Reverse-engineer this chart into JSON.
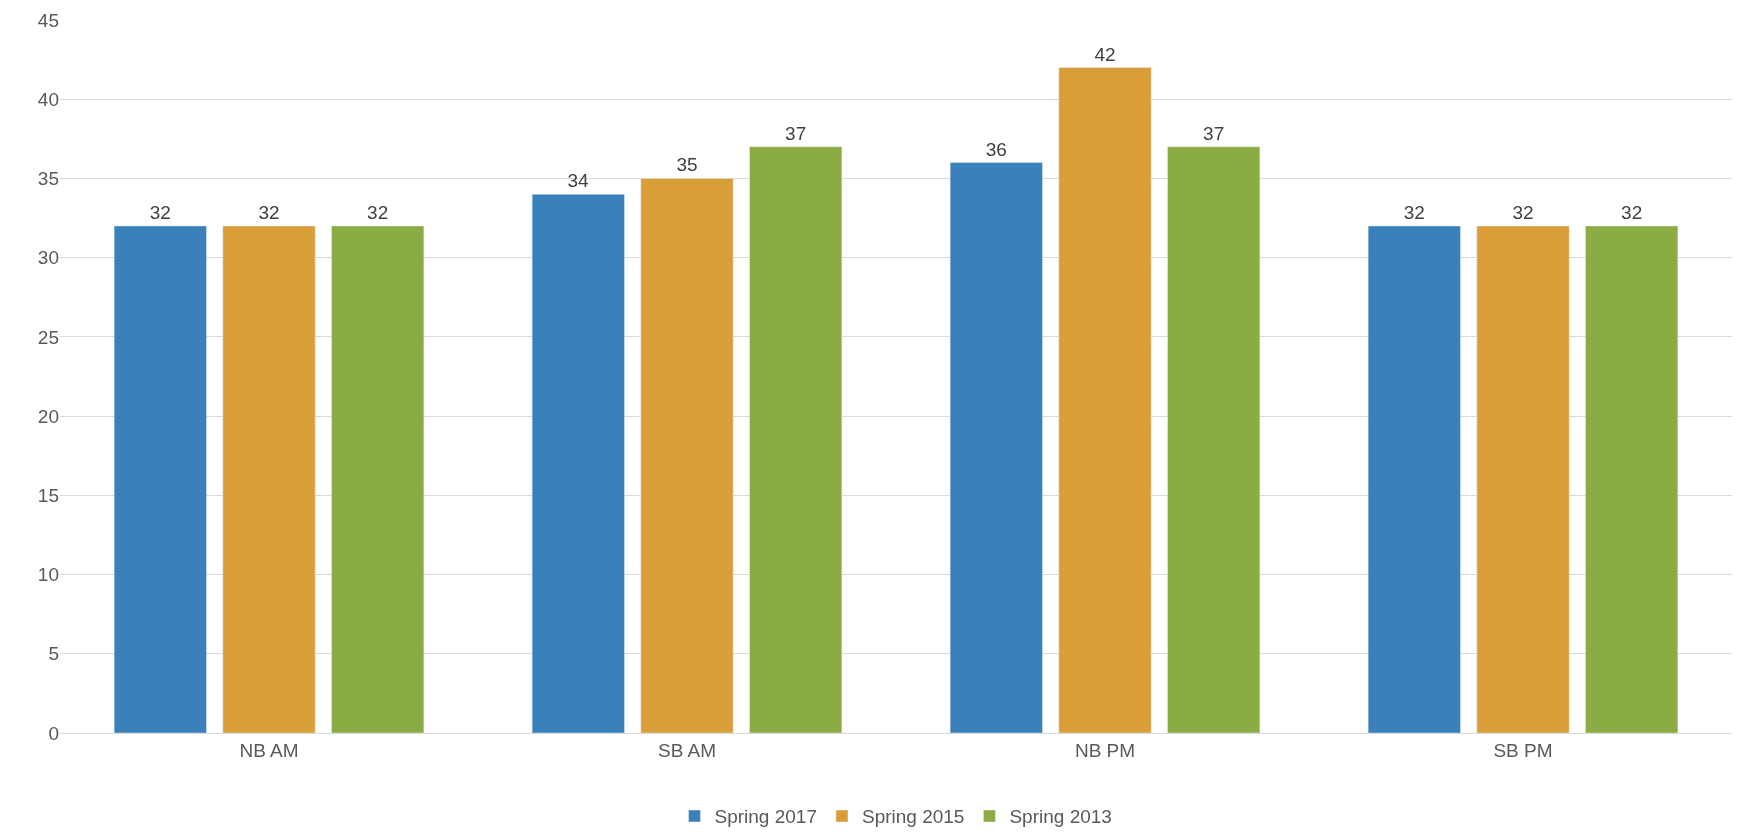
{
  "chart_data": {
    "type": "bar",
    "categories": [
      "NB AM",
      "SB AM",
      "NB PM",
      "SB PM"
    ],
    "series": [
      {
        "name": "Spring 2017",
        "color": "#3a80ba",
        "values": [
          32,
          34,
          36,
          32
        ]
      },
      {
        "name": "Spring 2015",
        "color": "#d99e38",
        "values": [
          32,
          35,
          42,
          32
        ]
      },
      {
        "name": "Spring 2013",
        "color": "#8bab43",
        "values": [
          32,
          37,
          37,
          32
        ]
      }
    ],
    "ylim": [
      0,
      45
    ],
    "yticks": [
      0,
      5,
      10,
      15,
      20,
      25,
      30,
      35,
      40,
      45
    ],
    "grid": "y",
    "legend": "bottom",
    "data_labels": true
  }
}
